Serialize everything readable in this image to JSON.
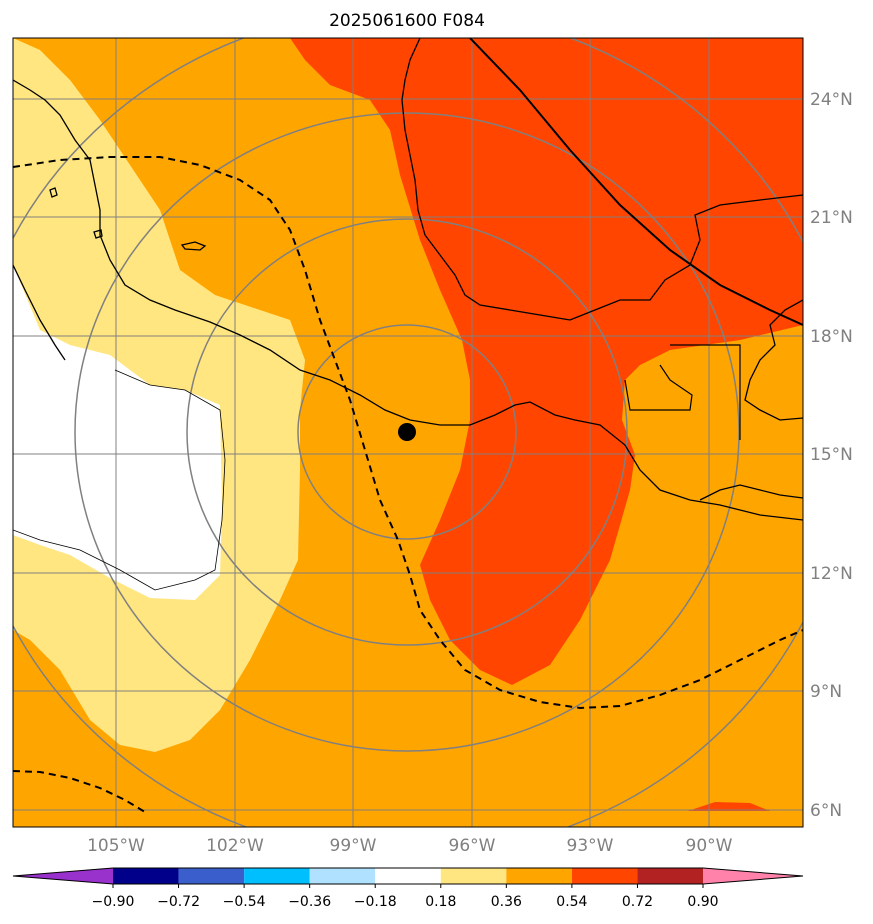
{
  "title": "2025061600 F084",
  "marker_icon": "black-dot",
  "longitude_labels": [
    "105°W",
    "102°W",
    "99°W",
    "96°W",
    "93°W",
    "90°W"
  ],
  "latitude_labels": [
    "24°N",
    "21°N",
    "18°N",
    "15°N",
    "12°N",
    "9°N",
    "6°N"
  ],
  "colorbar": {
    "ticks": [
      "−0.90",
      "−0.72",
      "−0.54",
      "−0.36",
      "−0.18",
      "0.18",
      "0.36",
      "0.54",
      "0.72",
      "0.90"
    ],
    "colors": [
      "#9932cc",
      "#00008b",
      "#3a5fcd",
      "#00bfff",
      "#b0e2ff",
      "#ffffff",
      "#ffe680",
      "#ffa500",
      "#ff4500",
      "#b22222",
      "#ff82ab"
    ]
  },
  "field_colors": {
    "band_0_18_0_36": "#ffe680",
    "band_0_36_0_54": "#ffa500",
    "band_0_54_0_72": "#ff4500",
    "band_neutral": "#ffffff"
  }
}
